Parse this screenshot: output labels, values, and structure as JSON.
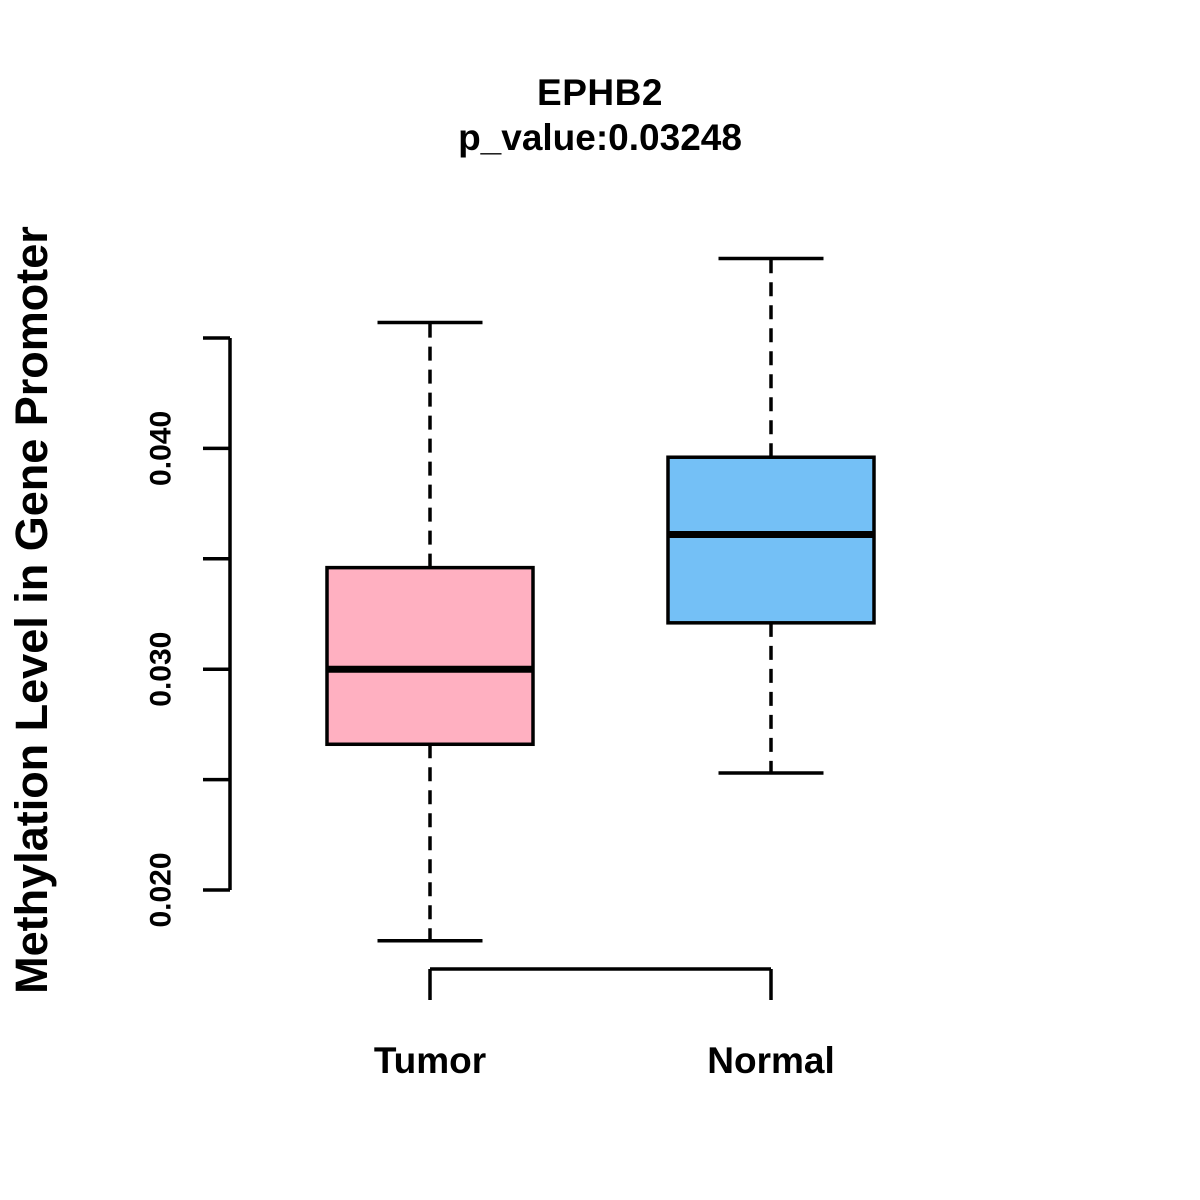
{
  "figure": {
    "background_color": "#ffffff",
    "line_color": "#000000"
  },
  "chart_data": {
    "type": "boxplot",
    "title": "EPHB2",
    "subtitle": "p_value:0.03248",
    "ylabel": "Methylation Level in Gene Promoter",
    "xlabel": "",
    "categories": [
      "Tumor",
      "Normal"
    ],
    "series": [
      {
        "name": "Tumor",
        "color": "#FFB0C1",
        "lower_whisker": 0.0177,
        "q1": 0.0266,
        "median": 0.03,
        "q3": 0.0346,
        "upper_whisker": 0.0457
      },
      {
        "name": "Normal",
        "color": "#74C0F6",
        "lower_whisker": 0.0253,
        "q1": 0.0321,
        "median": 0.0361,
        "q3": 0.0396,
        "upper_whisker": 0.0486
      }
    ],
    "y_axis": {
      "range": [
        0.02,
        0.045
      ],
      "ticks": [
        0.02,
        0.025,
        0.03,
        0.035,
        0.04,
        0.045
      ],
      "labeled_ticks": [
        "0.020",
        "0.030",
        "0.040"
      ]
    },
    "grid": false,
    "legend": "none",
    "whisker_style": "dashed",
    "box_border_color": "#000000"
  }
}
